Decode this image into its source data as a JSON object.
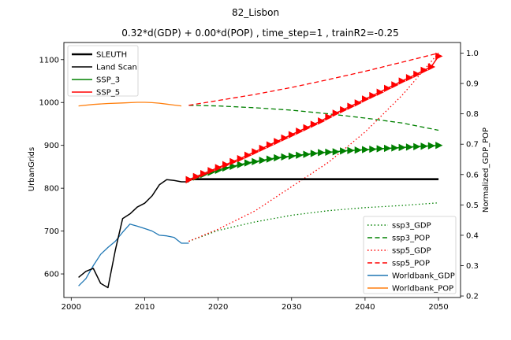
{
  "chart_data": {
    "type": "line",
    "title": "82_Lisbon",
    "subtitle": "0.32*d(GDP) + 0.00*d(POP) , time_step=1 , trainR2=-0.25",
    "xlabel": "",
    "ylabel_left": "UrbanGrids",
    "ylabel_right": "Normalized_GDP_POP",
    "xlim": [
      1999,
      2053
    ],
    "ylim_left": [
      545,
      1140
    ],
    "ylim_right": [
      0.195,
      1.035
    ],
    "x_ticks": [
      2000,
      2010,
      2020,
      2030,
      2040,
      2050
    ],
    "y_left_ticks": [
      600,
      700,
      800,
      900,
      1000,
      1100
    ],
    "y_right_ticks": [
      0.2,
      0.3,
      0.4,
      0.5,
      0.6,
      0.7,
      0.8,
      0.9,
      1.0
    ],
    "grid": false,
    "legend_left_placement": "top-left",
    "legend_right_placement": "bottom-right",
    "legend_left": [
      {
        "label": "SLEUTH",
        "color": "#000000",
        "style": "solid-thick"
      },
      {
        "label": "Land Scan",
        "color": "#000000",
        "style": "solid"
      },
      {
        "label": "SSP_3",
        "color": "#008000",
        "style": "solid"
      },
      {
        "label": "SSP_5",
        "color": "#ff0000",
        "style": "solid"
      }
    ],
    "legend_right": [
      {
        "label": "ssp3_GDP",
        "color": "#008000",
        "style": "dotted"
      },
      {
        "label": "ssp3_POP",
        "color": "#008000",
        "style": "dashed"
      },
      {
        "label": "ssp5_GDP",
        "color": "#ff0000",
        "style": "dotted"
      },
      {
        "label": "ssp5_POP",
        "color": "#ff0000",
        "style": "dashed"
      },
      {
        "label": "Worldbank_GDP",
        "color": "#1f77b4",
        "style": "solid"
      },
      {
        "label": "Worldbank_POP",
        "color": "#ff7f0e",
        "style": "solid"
      }
    ],
    "series_left": [
      {
        "name": "Land Scan",
        "color": "#000000",
        "x": [
          2001,
          2002,
          2003,
          2004,
          2005,
          2006,
          2007,
          2008,
          2009,
          2010,
          2011,
          2012,
          2013,
          2014,
          2015,
          2016
        ],
        "y": [
          592,
          606,
          613,
          578,
          568,
          655,
          729,
          740,
          756,
          765,
          782,
          808,
          820,
          818,
          815,
          815
        ]
      },
      {
        "name": "SLEUTH",
        "color": "#000000",
        "x": [
          2016,
          2050
        ],
        "y": [
          821,
          821
        ]
      },
      {
        "name": "SSP_3",
        "color": "#008000",
        "x": [
          2016,
          2017,
          2018,
          2019,
          2020,
          2021,
          2022,
          2023,
          2024,
          2025,
          2026,
          2027,
          2028,
          2029,
          2030,
          2031,
          2032,
          2033,
          2034,
          2035,
          2036,
          2037,
          2038,
          2039,
          2040,
          2041,
          2042,
          2043,
          2044,
          2045,
          2046,
          2047,
          2048,
          2049,
          2050
        ],
        "y": [
          820,
          826,
          832,
          837,
          842,
          847,
          851,
          855,
          859,
          862,
          865,
          868,
          871,
          873,
          875,
          877,
          879,
          881,
          883,
          884,
          885,
          887,
          888,
          889,
          890,
          891,
          892,
          893,
          894,
          895,
          896,
          897,
          898,
          899,
          900
        ]
      },
      {
        "name": "SSP_5",
        "color": "#ff0000",
        "x": [
          2016,
          2017,
          2018,
          2019,
          2020,
          2021,
          2022,
          2023,
          2024,
          2025,
          2026,
          2027,
          2028,
          2029,
          2030,
          2031,
          2032,
          2033,
          2034,
          2035,
          2036,
          2037,
          2038,
          2039,
          2040,
          2041,
          2042,
          2043,
          2044,
          2045,
          2046,
          2047,
          2048,
          2049,
          2050
        ],
        "y": [
          820,
          827,
          834,
          841,
          848,
          855,
          862,
          869,
          877,
          885,
          893,
          901,
          909,
          917,
          925,
          933,
          941,
          949,
          957,
          966,
          975,
          983,
          991,
          999,
          1008,
          1016,
          1024,
          1033,
          1041,
          1050,
          1058,
          1066,
          1075,
          1083,
          1108
        ]
      }
    ],
    "series_right": [
      {
        "name": "Worldbank_GDP",
        "color": "#1f77b4",
        "x": [
          2001,
          2002,
          2003,
          2004,
          2005,
          2006,
          2007,
          2008,
          2009,
          2010,
          2011,
          2012,
          2013,
          2014,
          2015,
          2016
        ],
        "y": [
          0.233,
          0.257,
          0.3,
          0.337,
          0.36,
          0.38,
          0.41,
          0.437,
          0.43,
          0.422,
          0.414,
          0.4,
          0.398,
          0.393,
          0.374,
          0.374
        ]
      },
      {
        "name": "Worldbank_POP",
        "color": "#ff7f0e",
        "x": [
          2001,
          2003,
          2005,
          2007,
          2009,
          2010,
          2011,
          2012,
          2013,
          2014,
          2015
        ],
        "y": [
          0.826,
          0.831,
          0.834,
          0.836,
          0.838,
          0.838,
          0.837,
          0.835,
          0.832,
          0.829,
          0.826
        ]
      },
      {
        "name": "ssp3_GDP",
        "color": "#008000",
        "x": [
          2016,
          2020,
          2025,
          2030,
          2035,
          2040,
          2045,
          2050
        ],
        "y": [
          0.38,
          0.416,
          0.444,
          0.466,
          0.481,
          0.491,
          0.498,
          0.507
        ]
      },
      {
        "name": "ssp3_POP",
        "color": "#008000",
        "x": [
          2016,
          2020,
          2025,
          2030,
          2035,
          2040,
          2045,
          2050
        ],
        "y": [
          0.828,
          0.826,
          0.82,
          0.812,
          0.8,
          0.786,
          0.77,
          0.746
        ]
      },
      {
        "name": "ssp5_GDP",
        "color": "#ff0000",
        "x": [
          2016,
          2020,
          2025,
          2030,
          2035,
          2040,
          2045,
          2050
        ],
        "y": [
          0.38,
          0.42,
          0.48,
          0.56,
          0.64,
          0.74,
          0.86,
          1.0
        ]
      },
      {
        "name": "ssp5_POP",
        "color": "#ff0000",
        "x": [
          2016,
          2020,
          2025,
          2030,
          2035,
          2040,
          2045,
          2050
        ],
        "y": [
          0.828,
          0.844,
          0.864,
          0.887,
          0.913,
          0.94,
          0.97,
          1.0
        ]
      }
    ]
  }
}
